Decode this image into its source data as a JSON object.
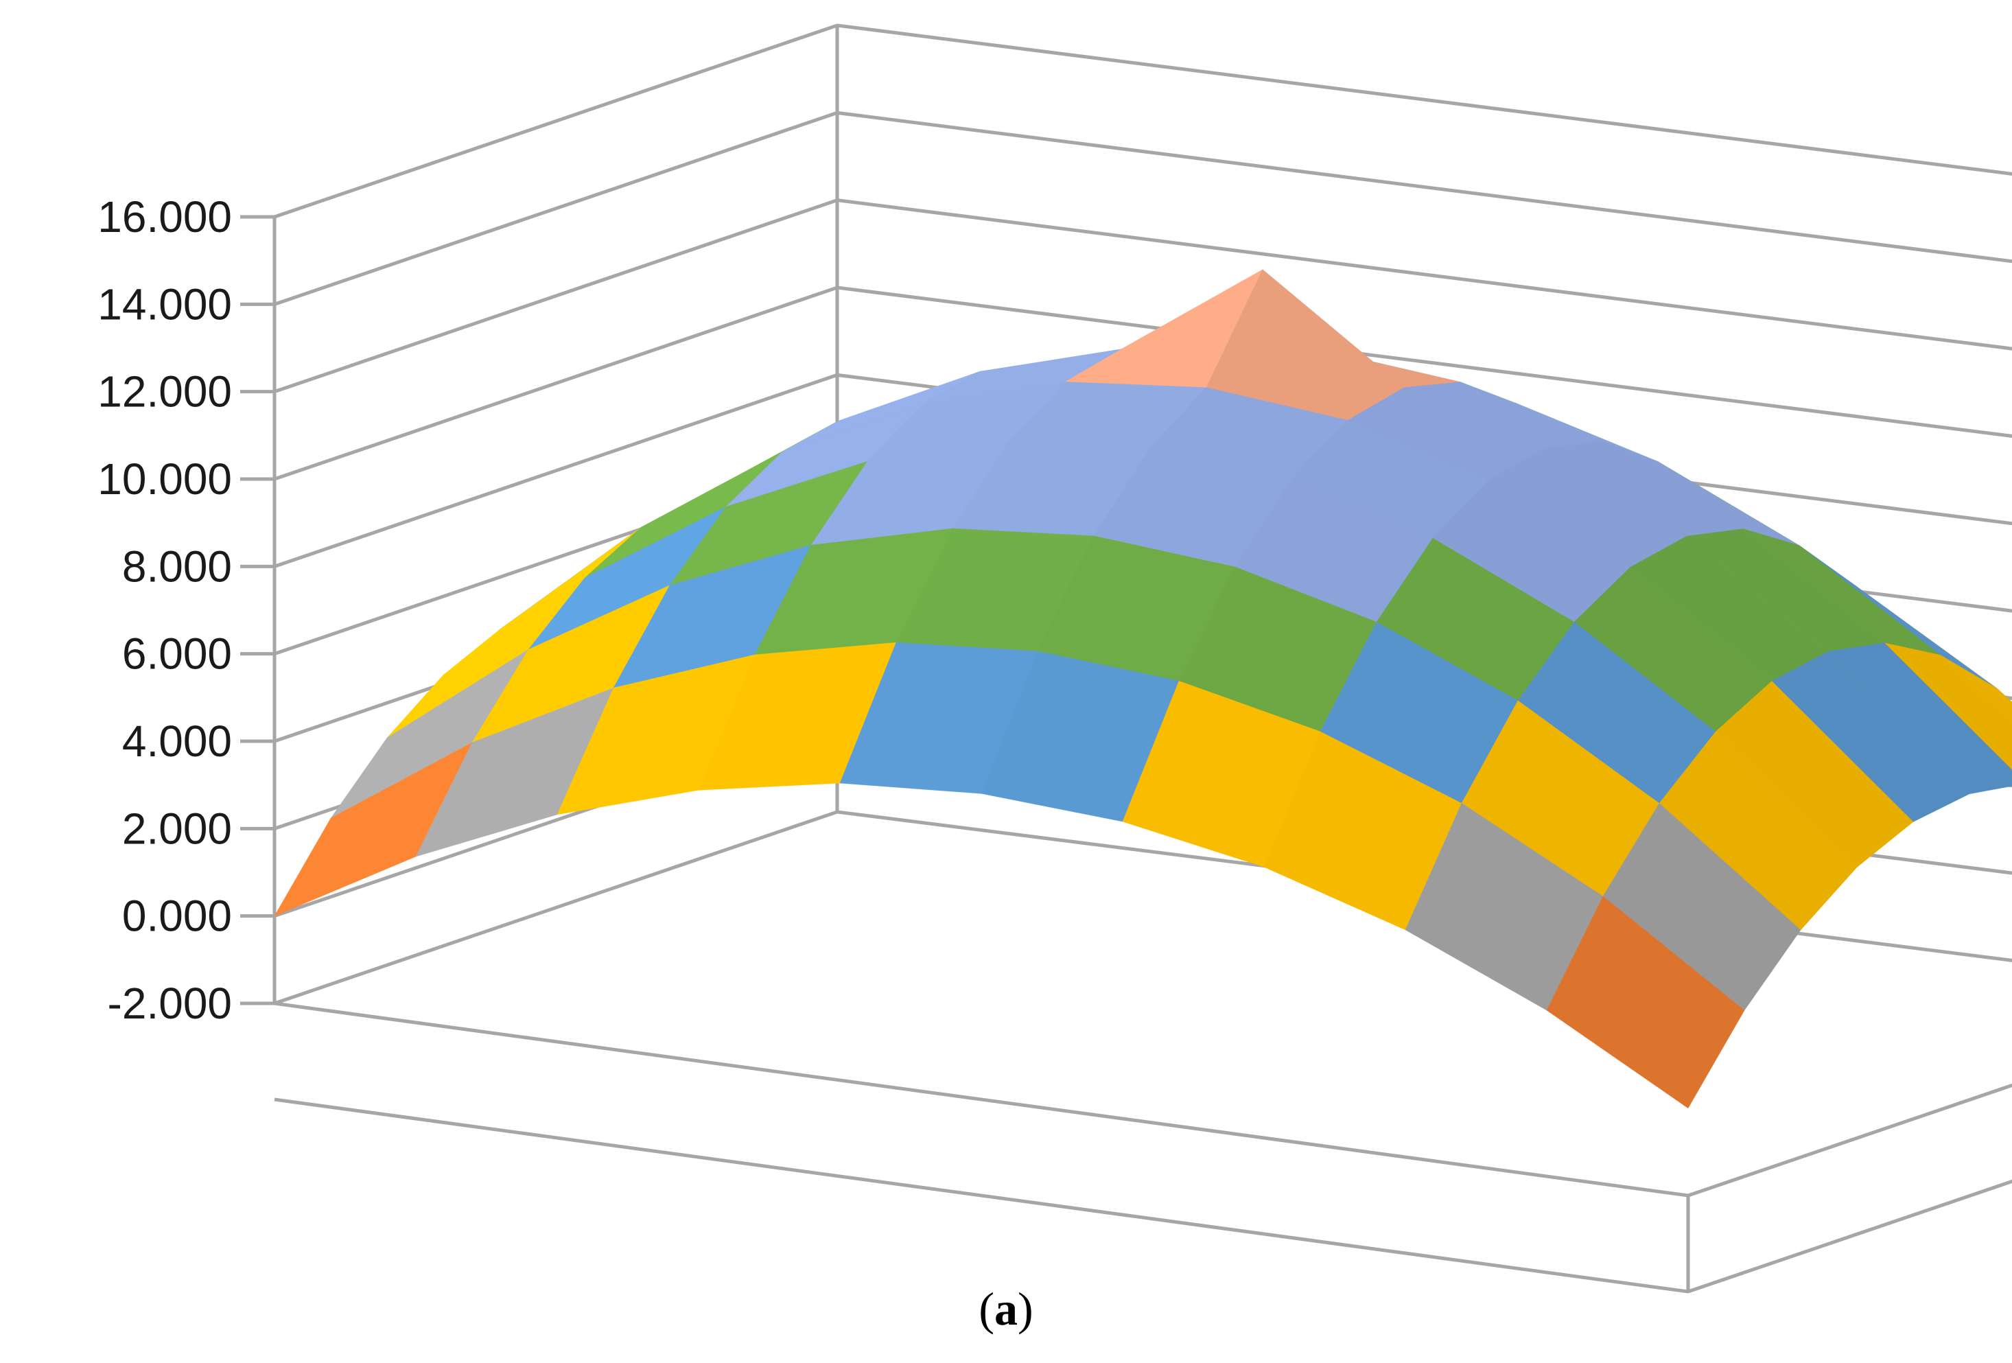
{
  "chart_data": {
    "type": "surface",
    "title": "",
    "xlabel": "",
    "ylabel": "",
    "zlim": [
      -2,
      16
    ],
    "z_ticks": [
      -2,
      0,
      2,
      4,
      6,
      8,
      10,
      12,
      14,
      16
    ],
    "z_tick_labels": [
      "-2.000",
      "0.000",
      "2.000",
      "4.000",
      "6.000",
      "8.000",
      "10.000",
      "12.000",
      "14.000",
      "16.000"
    ],
    "grid": true,
    "legend": "none",
    "band_colors": [
      {
        "range": [
          -2,
          0
        ],
        "color": "#4472c4"
      },
      {
        "range": [
          0,
          2
        ],
        "color": "#ed7d31"
      },
      {
        "range": [
          2,
          4
        ],
        "color": "#a5a5a5"
      },
      {
        "range": [
          4,
          6
        ],
        "color": "#ffc000"
      },
      {
        "range": [
          6,
          8
        ],
        "color": "#5b9bd5"
      },
      {
        "range": [
          8,
          10
        ],
        "color": "#70ad47"
      },
      {
        "range": [
          10,
          12
        ],
        "color": "#8fa8e0"
      },
      {
        "range": [
          12,
          14
        ],
        "color": "#f4a582"
      },
      {
        "range": [
          14,
          16
        ],
        "color": "#c9c9c9"
      }
    ],
    "x": [
      -1.0,
      -0.8,
      -0.6,
      -0.4,
      -0.2,
      0.0,
      0.2,
      0.4,
      0.6,
      0.8,
      1.0
    ],
    "y": [
      -1.0,
      -0.8,
      -0.6,
      -0.4,
      -0.2,
      0.0,
      0.2,
      0.4,
      0.6,
      0.8,
      1.0
    ],
    "z": [
      [
        0.0,
        1.8,
        3.2,
        4.2,
        4.8,
        5.0,
        4.8,
        4.2,
        3.2,
        1.8,
        0.0
      ],
      [
        1.8,
        3.97,
        5.66,
        6.86,
        7.58,
        7.82,
        7.58,
        6.86,
        5.66,
        3.97,
        1.8
      ],
      [
        3.2,
        5.66,
        7.57,
        8.93,
        9.75,
        10.02,
        9.75,
        8.93,
        7.57,
        5.66,
        3.2
      ],
      [
        4.2,
        6.86,
        8.93,
        10.41,
        11.3,
        11.59,
        11.3,
        10.41,
        8.93,
        6.86,
        4.2
      ],
      [
        4.8,
        7.58,
        9.75,
        11.3,
        12.23,
        12.54,
        12.23,
        11.3,
        9.75,
        7.58,
        4.8
      ],
      [
        5.0,
        7.82,
        10.02,
        11.59,
        12.54,
        14.8,
        12.54,
        11.59,
        10.02,
        7.82,
        5.0
      ],
      [
        4.8,
        7.58,
        9.75,
        11.3,
        12.23,
        12.54,
        12.23,
        11.3,
        9.75,
        7.58,
        4.8
      ],
      [
        4.2,
        6.86,
        8.93,
        10.41,
        11.3,
        11.59,
        11.3,
        10.41,
        8.93,
        6.86,
        4.2
      ],
      [
        3.2,
        5.66,
        7.57,
        8.93,
        9.75,
        10.02,
        9.75,
        8.93,
        7.57,
        5.66,
        3.2
      ],
      [
        1.8,
        3.97,
        5.66,
        6.86,
        7.58,
        7.82,
        7.58,
        6.86,
        5.66,
        3.97,
        1.8
      ],
      [
        0.0,
        1.8,
        3.2,
        4.2,
        4.8,
        5.0,
        4.8,
        4.2,
        3.2,
        1.8,
        0.0
      ]
    ]
  },
  "caption": {
    "open": "(",
    "letter": "a",
    "close": ")"
  }
}
